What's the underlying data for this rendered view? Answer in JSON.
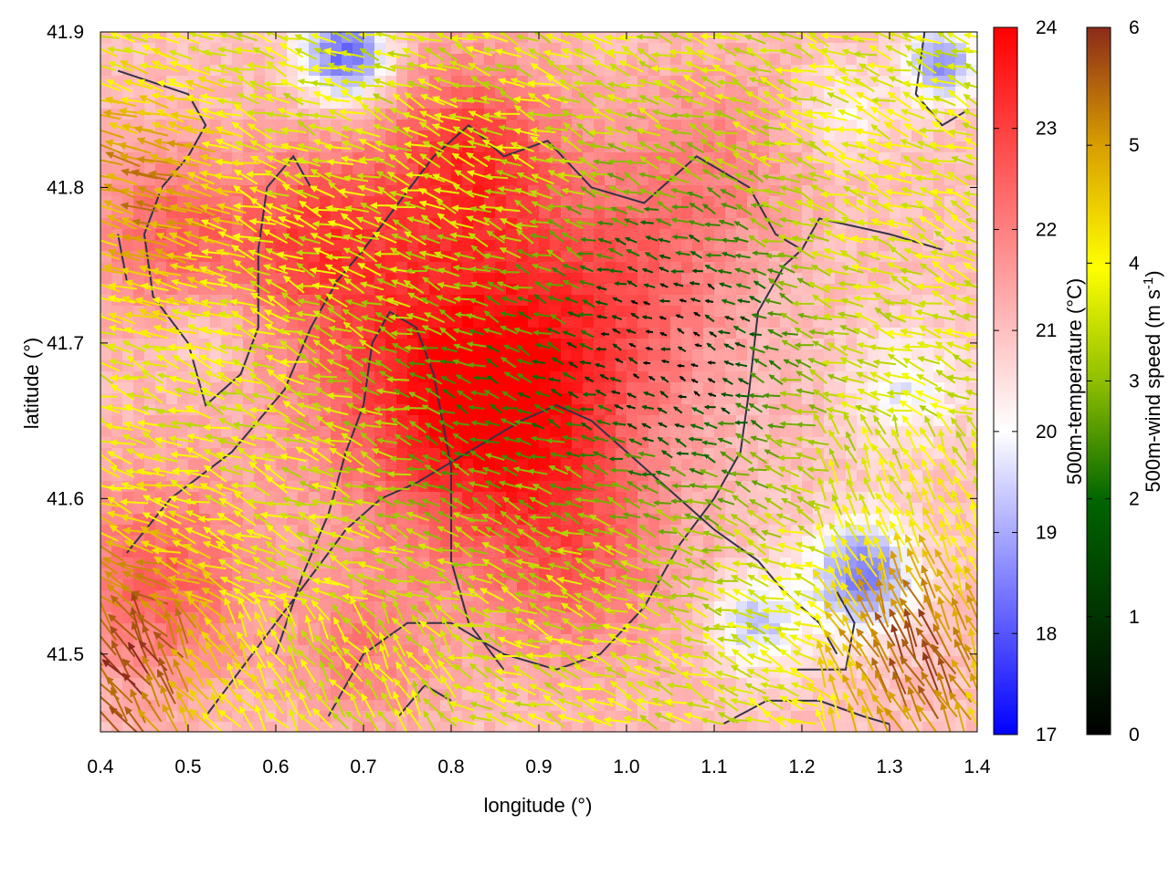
{
  "chart_data": {
    "type": "heatmap",
    "title": "",
    "xlabel": "longitude (°)",
    "ylabel": "latitude (°)",
    "xlim": [
      0.4,
      1.4
    ],
    "ylim": [
      41.45,
      41.9
    ],
    "x_ticks": [
      0.4,
      0.5,
      0.6,
      0.7,
      0.8,
      0.9,
      1.0,
      1.1,
      1.2,
      1.3,
      1.4
    ],
    "x_tick_labels": [
      "0.4",
      "0.5",
      "0.6",
      "0.7",
      "0.8",
      "0.9",
      "1.0",
      "1.1",
      "1.2",
      "1.3",
      "1.4"
    ],
    "y_ticks": [
      41.5,
      41.6,
      41.7,
      41.8,
      41.9
    ],
    "y_tick_labels": [
      "41.5",
      "41.6",
      "41.7",
      "41.8",
      "41.9"
    ],
    "grid": false,
    "temperature_colorbar": {
      "label": "500m-temperature (°C)",
      "range": [
        17,
        24
      ],
      "ticks": [
        17,
        18,
        19,
        20,
        21,
        22,
        23,
        24
      ],
      "tick_labels": [
        "17",
        "18",
        "19",
        "20",
        "21",
        "22",
        "23",
        "24"
      ],
      "colors": [
        "#0000ff",
        "#ffffff",
        "#ff0000"
      ]
    },
    "wind_colorbar": {
      "label_main": "500m-wind speed (m s",
      "label_sup": "-1",
      "label_end": ")",
      "range": [
        0,
        6
      ],
      "ticks": [
        0,
        1,
        2,
        3,
        4,
        5,
        6
      ],
      "tick_labels": [
        "0",
        "1",
        "2",
        "3",
        "4",
        "5",
        "6"
      ],
      "colors": [
        "#000000",
        "#006400",
        "#8fbf00",
        "#ffff00",
        "#d9a000",
        "#8b2a1a"
      ]
    },
    "temperature_hotspots": [
      {
        "lon": 0.79,
        "lat": 41.69,
        "temp": 23.2,
        "r": 0.16
      },
      {
        "lon": 0.88,
        "lat": 41.64,
        "temp": 22.8,
        "r": 0.14
      },
      {
        "lon": 0.82,
        "lat": 41.82,
        "temp": 22.9,
        "r": 0.1
      },
      {
        "lon": 0.64,
        "lat": 41.77,
        "temp": 22.6,
        "r": 0.09
      },
      {
        "lon": 0.48,
        "lat": 41.77,
        "temp": 22.4,
        "r": 0.09
      },
      {
        "lon": 0.47,
        "lat": 41.55,
        "temp": 22.5,
        "r": 0.11
      },
      {
        "lon": 1.0,
        "lat": 41.74,
        "temp": 22.2,
        "r": 0.12
      },
      {
        "lon": 1.1,
        "lat": 41.82,
        "temp": 21.8,
        "r": 0.1
      },
      {
        "lon": 0.95,
        "lat": 41.55,
        "temp": 22.0,
        "r": 0.1
      },
      {
        "lon": 0.7,
        "lat": 41.5,
        "temp": 22.0,
        "r": 0.08
      }
    ],
    "temperature_coldspots": [
      {
        "lon": 0.68,
        "lat": 41.885,
        "temp": 18.6,
        "r": 0.05
      },
      {
        "lon": 1.36,
        "lat": 41.88,
        "temp": 19.0,
        "r": 0.04
      },
      {
        "lon": 1.27,
        "lat": 41.55,
        "temp": 18.9,
        "r": 0.06
      },
      {
        "lon": 1.32,
        "lat": 41.67,
        "temp": 20.0,
        "r": 0.06
      },
      {
        "lon": 1.15,
        "lat": 41.52,
        "temp": 19.6,
        "r": 0.05
      },
      {
        "lon": 0.52,
        "lat": 41.71,
        "temp": 20.5,
        "r": 0.05
      },
      {
        "lon": 1.25,
        "lat": 41.85,
        "temp": 20.3,
        "r": 0.05
      }
    ],
    "wind_field": {
      "background_direction_deg": 160,
      "calm_center": {
        "lon": 1.05,
        "lat": 41.7,
        "r": 0.14
      },
      "strong_regions": [
        {
          "lon": 0.42,
          "lat": 41.5,
          "speed": 5.8,
          "r": 0.12
        },
        {
          "lon": 0.45,
          "lat": 41.8,
          "speed": 5.0,
          "r": 0.1
        },
        {
          "lon": 1.33,
          "lat": 41.5,
          "speed": 5.6,
          "r": 0.1
        },
        {
          "lon": 1.28,
          "lat": 41.82,
          "speed": 3.5,
          "r": 0.1
        }
      ]
    },
    "contour_paths": [
      [
        [
          0.42,
          41.875
        ],
        [
          0.5,
          41.86
        ],
        [
          0.52,
          41.84
        ],
        [
          0.5,
          41.82
        ],
        [
          0.47,
          41.8
        ],
        [
          0.45,
          41.77
        ],
        [
          0.46,
          41.73
        ],
        [
          0.5,
          41.7
        ],
        [
          0.52,
          41.66
        ],
        [
          0.56,
          41.68
        ],
        [
          0.58,
          41.71
        ],
        [
          0.58,
          41.76
        ],
        [
          0.59,
          41.8
        ],
        [
          0.62,
          41.82
        ],
        [
          0.64,
          41.8
        ]
      ],
      [
        [
          0.43,
          41.565
        ],
        [
          0.48,
          41.6
        ],
        [
          0.55,
          41.63
        ],
        [
          0.61,
          41.67
        ],
        [
          0.64,
          41.71
        ],
        [
          0.67,
          41.74
        ],
        [
          0.7,
          41.76
        ],
        [
          0.74,
          41.79
        ],
        [
          0.78,
          41.82
        ],
        [
          0.82,
          41.84
        ],
        [
          0.86,
          41.82
        ],
        [
          0.91,
          41.83
        ],
        [
          0.96,
          41.8
        ],
        [
          1.02,
          41.79
        ],
        [
          1.08,
          41.82
        ],
        [
          1.14,
          41.8
        ],
        [
          1.17,
          41.77
        ],
        [
          1.2,
          41.76
        ]
      ],
      [
        [
          0.6,
          41.5
        ],
        [
          0.63,
          41.55
        ],
        [
          0.66,
          41.59
        ],
        [
          0.68,
          41.63
        ],
        [
          0.7,
          41.66
        ],
        [
          0.71,
          41.7
        ],
        [
          0.73,
          41.72
        ],
        [
          0.76,
          41.71
        ],
        [
          0.78,
          41.68
        ],
        [
          0.8,
          41.62
        ],
        [
          0.8,
          41.56
        ],
        [
          0.82,
          41.52
        ],
        [
          0.86,
          41.49
        ]
      ],
      [
        [
          0.52,
          41.46
        ],
        [
          0.56,
          41.49
        ],
        [
          0.6,
          41.52
        ],
        [
          0.64,
          41.55
        ],
        [
          0.68,
          41.58
        ],
        [
          0.72,
          41.6
        ],
        [
          0.76,
          41.61
        ],
        [
          0.82,
          41.63
        ],
        [
          0.88,
          41.65
        ],
        [
          0.92,
          41.66
        ],
        [
          0.96,
          41.65
        ],
        [
          1.02,
          41.62
        ],
        [
          1.06,
          41.6
        ],
        [
          1.1,
          41.58
        ],
        [
          1.15,
          41.56
        ],
        [
          1.18,
          41.54
        ],
        [
          1.22,
          41.52
        ],
        [
          1.24,
          41.5
        ]
      ],
      [
        [
          0.66,
          41.46
        ],
        [
          0.7,
          41.5
        ],
        [
          0.75,
          41.52
        ],
        [
          0.8,
          41.52
        ],
        [
          0.86,
          41.5
        ],
        [
          0.92,
          41.49
        ],
        [
          0.97,
          41.5
        ],
        [
          1.02,
          41.53
        ],
        [
          1.06,
          41.57
        ],
        [
          1.1,
          41.6
        ],
        [
          1.13,
          41.63
        ],
        [
          1.14,
          41.67
        ],
        [
          1.15,
          41.72
        ],
        [
          1.18,
          41.75
        ],
        [
          1.2,
          41.76
        ],
        [
          1.22,
          41.78
        ],
        [
          1.3,
          41.77
        ],
        [
          1.36,
          41.76
        ]
      ],
      [
        [
          1.11,
          41.455
        ],
        [
          1.16,
          41.47
        ],
        [
          1.22,
          41.47
        ],
        [
          1.27,
          41.46
        ],
        [
          1.3,
          41.455
        ]
      ],
      [
        [
          1.19,
          41.49
        ],
        [
          1.25,
          41.49
        ],
        [
          1.26,
          41.52
        ],
        [
          1.24,
          41.54
        ]
      ],
      [
        [
          1.34,
          41.9
        ],
        [
          1.33,
          41.86
        ],
        [
          1.36,
          41.84
        ],
        [
          1.39,
          41.85
        ]
      ],
      [
        [
          0.74,
          41.46
        ],
        [
          0.77,
          41.48
        ],
        [
          0.8,
          41.47
        ]
      ],
      [
        [
          0.42,
          41.77
        ],
        [
          0.43,
          41.74
        ]
      ]
    ]
  }
}
